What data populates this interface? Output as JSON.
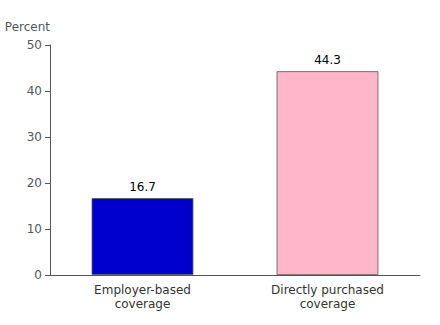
{
  "chart_data": {
    "type": "bar",
    "ylabel": "Percent",
    "categories": [
      "Employer-based\ncoverage",
      "Directly purchased\ncoverage"
    ],
    "values": [
      16.7,
      44.3
    ],
    "colors": [
      "#0000cc",
      "#ffb6c8"
    ],
    "ylim": [
      0,
      50
    ],
    "yticks": [
      0,
      10,
      20,
      30,
      40,
      50
    ],
    "data_labels": true,
    "grid": false
  }
}
